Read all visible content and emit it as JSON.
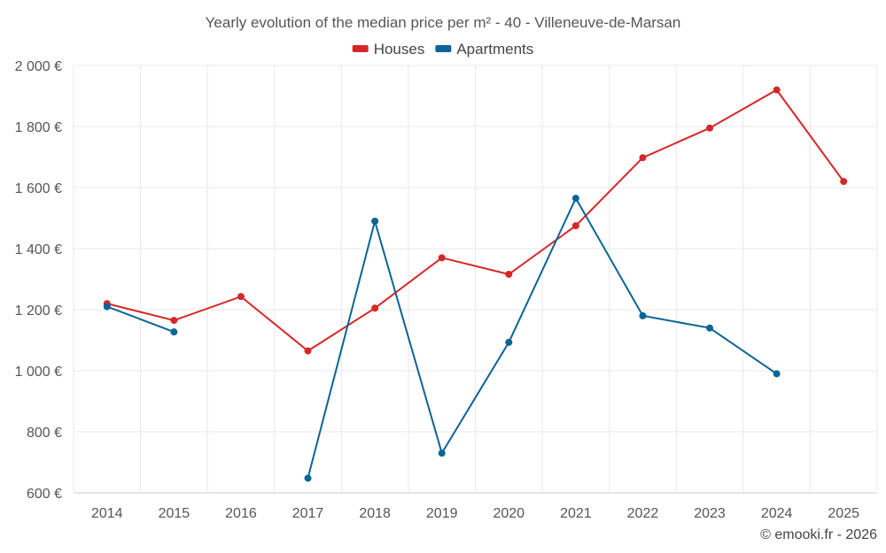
{
  "chart_data": {
    "type": "line",
    "title": "Yearly evolution of the median price per m² - 40 - Villeneuve-de-Marsan",
    "categories": [
      "2014",
      "2015",
      "2016",
      "2017",
      "2018",
      "2019",
      "2020",
      "2021",
      "2022",
      "2023",
      "2024",
      "2025"
    ],
    "y_ticks": [
      {
        "value": 600,
        "label": "600 €"
      },
      {
        "value": 800,
        "label": "800 €"
      },
      {
        "value": 1000,
        "label": "1 000 €"
      },
      {
        "value": 1200,
        "label": "1 200 €"
      },
      {
        "value": 1400,
        "label": "1 400 €"
      },
      {
        "value": 1600,
        "label": "1 600 €"
      },
      {
        "value": 1800,
        "label": "1 800 €"
      },
      {
        "value": 2000,
        "label": "2 000 €"
      }
    ],
    "ylim": [
      600,
      2000
    ],
    "xlabel": "",
    "ylabel": "",
    "grid": true,
    "legend_position": "top-center",
    "series": [
      {
        "name": "Houses",
        "color": "#d62728",
        "values": [
          1220,
          1165,
          1243,
          1065,
          1205,
          1370,
          1316,
          1475,
          1698,
          1795,
          1920,
          1620
        ]
      },
      {
        "name": "Apartments",
        "color": "#0b6496",
        "values": [
          1210,
          1127,
          null,
          648,
          1490,
          730,
          1093,
          1565,
          1180,
          1140,
          990,
          null
        ]
      }
    ],
    "credit": "© emooki.fr - 2026"
  }
}
